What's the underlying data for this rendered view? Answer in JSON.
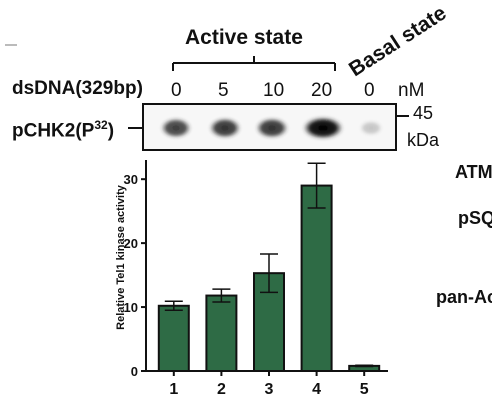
{
  "header": {
    "active_state": "Active state",
    "basal_state": "Basal state"
  },
  "blot": {
    "dsdna_label": "dsDNA(329bp)",
    "concentrations": [
      "0",
      "5",
      "10",
      "20",
      "0"
    ],
    "unit": "nM",
    "band_label_main": "pCHK2(P",
    "band_label_sup": "32",
    "band_label_end": ")",
    "mw_marker": "45",
    "mw_unit": "kDa",
    "band_intensities": [
      0.75,
      0.8,
      0.8,
      1.0,
      0.2
    ]
  },
  "side_labels": [
    "ATM",
    "pSQ",
    "pan-Ac"
  ],
  "chart_data": {
    "type": "bar",
    "categories": [
      "1",
      "2",
      "3",
      "4",
      "5"
    ],
    "values": [
      10.2,
      11.8,
      15.3,
      29.0,
      0.8
    ],
    "errors": [
      0.7,
      1.0,
      3.0,
      3.5,
      0.1
    ],
    "ylabel": "Relative Tel1 kinase activity",
    "ylim": [
      0,
      33
    ],
    "yticks": [
      0,
      10,
      20,
      30
    ],
    "bar_color": "#2e6b45",
    "grid": false
  }
}
